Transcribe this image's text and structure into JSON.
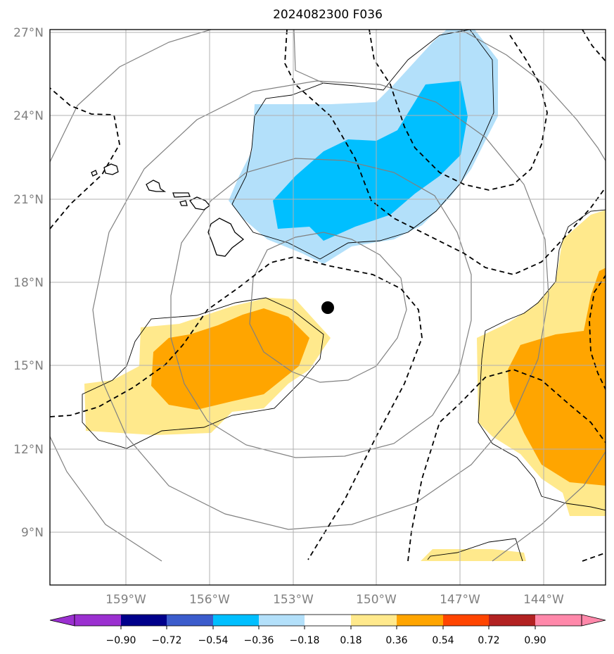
{
  "title": "2024082300 F036",
  "lon_labels": [
    "159°W",
    "156°W",
    "153°W",
    "150°W",
    "147°W",
    "144°W"
  ],
  "lat_labels": [
    "27°N",
    "24°N",
    "21°N",
    "18°N",
    "15°N",
    "12°N",
    "9°N"
  ],
  "colorbar": {
    "tick_labels": [
      "−0.90",
      "−0.72",
      "−0.54",
      "−0.36",
      "−0.18",
      "0.18",
      "0.36",
      "0.54",
      "0.72",
      "0.90"
    ],
    "colors": [
      "#9b30d0",
      "#00008b",
      "#3b5ccc",
      "#00bfff",
      "#b3e0fa",
      "#ffffff",
      "#ffe98c",
      "#ffa500",
      "#ff4500",
      "#b22222",
      "#ff88aa"
    ]
  },
  "map": {
    "extent_lon": [
      -161.7,
      -141.7
    ],
    "extent_lat": [
      7.0,
      27.2
    ],
    "storm_center": {
      "lon": -151.7,
      "lat": 17.1
    },
    "fill_colors": {
      "light_blue": "#b3e0fa",
      "blue": "#00bfff",
      "light_yellow": "#ffe98c",
      "orange": "#ffa500"
    },
    "gridlines": true
  }
}
